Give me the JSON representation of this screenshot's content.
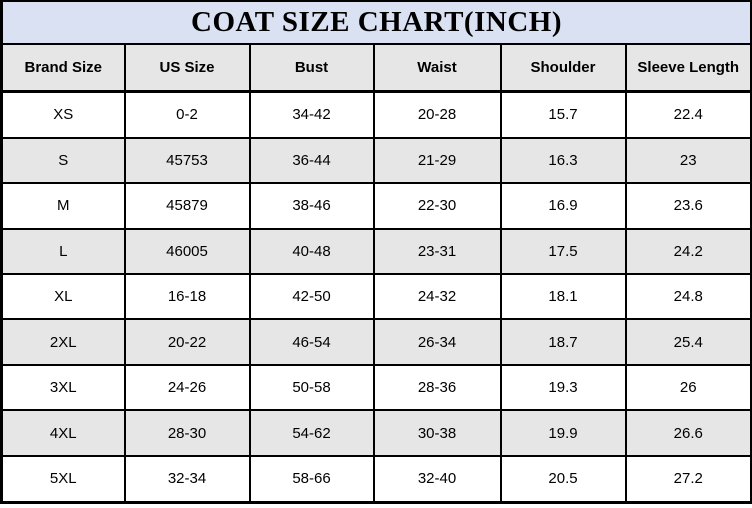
{
  "title": "COAT SIZE CHART(INCH)",
  "colors": {
    "title_bg": "#d9e1f2",
    "header_bg": "#e7e6e6",
    "stripe_bg": "#e7e6e6",
    "row_bg": "#ffffff",
    "border": "#000000",
    "text": "#000000"
  },
  "table": {
    "columns": [
      "Brand Size",
      "US Size",
      "Bust",
      "Waist",
      "Shoulder",
      "Sleeve Length"
    ],
    "rows": [
      {
        "cells": [
          "XS",
          "0-2",
          "34-42",
          "20-28",
          "15.7",
          "22.4"
        ]
      },
      {
        "cells": [
          "S",
          "45753",
          "36-44",
          "21-29",
          "16.3",
          "23"
        ]
      },
      {
        "cells": [
          "M",
          "45879",
          "38-46",
          "22-30",
          "16.9",
          "23.6"
        ]
      },
      {
        "cells": [
          "L",
          "46005",
          "40-48",
          "23-31",
          "17.5",
          "24.2"
        ]
      },
      {
        "cells": [
          "XL",
          "16-18",
          "42-50",
          "24-32",
          "18.1",
          "24.8"
        ]
      },
      {
        "cells": [
          "2XL",
          "20-22",
          "46-54",
          "26-34",
          "18.7",
          "25.4"
        ]
      },
      {
        "cells": [
          "3XL",
          "24-26",
          "50-58",
          "28-36",
          "19.3",
          "26"
        ]
      },
      {
        "cells": [
          "4XL",
          "28-30",
          "54-62",
          "30-38",
          "19.9",
          "26.6"
        ]
      },
      {
        "cells": [
          "5XL",
          "32-34",
          "58-66",
          "32-40",
          "20.5",
          "27.2"
        ]
      }
    ]
  }
}
